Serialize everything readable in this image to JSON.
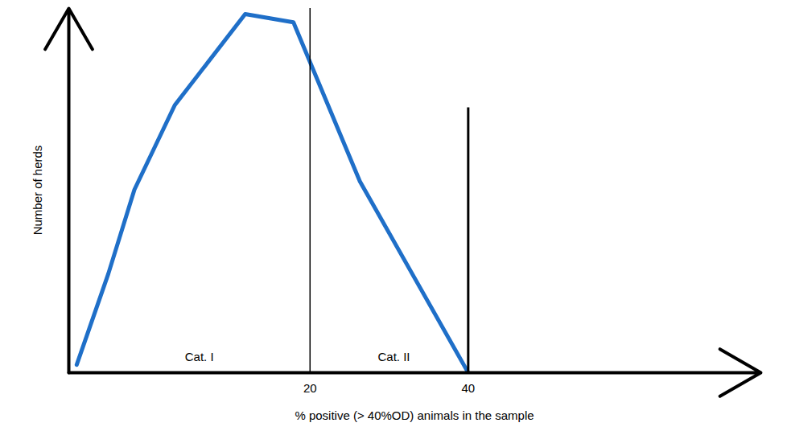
{
  "chart_data": {
    "type": "line",
    "x_label": "% positive (> 40%OD) animals in the sample",
    "y_label": "Number of herds",
    "x": [
      -9.5,
      -5.5,
      -2.2,
      2.9,
      11.8,
      17.9,
      26.3,
      40
    ],
    "values": [
      2.4,
      29.9,
      55.3,
      80.8,
      108.3,
      105.8,
      57.8,
      0
    ],
    "color": "#1f6fc8",
    "xlim": [
      -10.5,
      77
    ],
    "ylim": [
      0,
      110
    ],
    "xticks": [
      20,
      40
    ],
    "yticks": [],
    "tick_labels": "x",
    "reference_lines": [
      {
        "x": 20,
        "ymax": 110
      },
      {
        "x": 40,
        "ymax": 80
      }
    ],
    "annotations": [
      {
        "text": "Cat. I",
        "x": 6,
        "y": 4.6
      },
      {
        "text": "Cat. II",
        "x": 30.6,
        "y": 4.6
      }
    ]
  }
}
